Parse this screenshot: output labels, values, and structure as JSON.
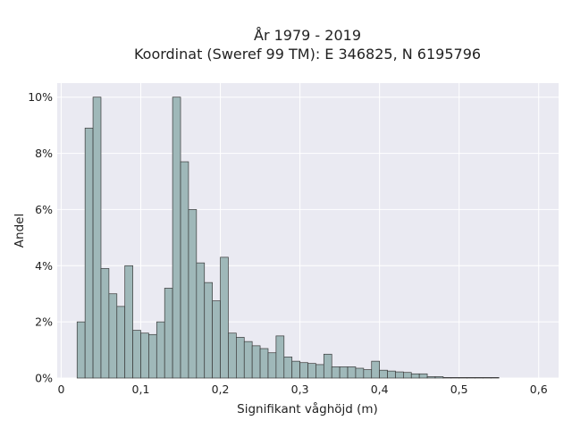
{
  "chart_data": {
    "type": "bar",
    "title_line1": "År 1979 - 2019",
    "title_line2": "Koordinat (Sweref 99 TM): E 346825, N 6195796",
    "xlabel": "Signifikant våghöjd (m)",
    "ylabel": "Andel",
    "xlim": [
      -0.005,
      0.625
    ],
    "ylim": [
      0,
      0.105
    ],
    "x_ticks": [
      0,
      0.1,
      0.2,
      0.3,
      0.4,
      0.5,
      0.6
    ],
    "x_tick_labels": [
      "0",
      "0,1",
      "0,2",
      "0,3",
      "0,4",
      "0,5",
      "0,6"
    ],
    "y_ticks": [
      0,
      0.02,
      0.04,
      0.06,
      0.08,
      0.1
    ],
    "y_tick_labels": [
      "0%",
      "2%",
      "4%",
      "6%",
      "8%",
      "10%"
    ],
    "bin_start": 0.02,
    "bin_width": 0.01,
    "values": [
      0.02,
      0.089,
      0.1,
      0.039,
      0.03,
      0.0255,
      0.04,
      0.017,
      0.016,
      0.0155,
      0.02,
      0.032,
      0.1,
      0.077,
      0.06,
      0.041,
      0.034,
      0.0275,
      0.043,
      0.016,
      0.0145,
      0.013,
      0.0115,
      0.0105,
      0.009,
      0.015,
      0.0075,
      0.006,
      0.0055,
      0.0052,
      0.0048,
      0.0085,
      0.004,
      0.004,
      0.004,
      0.0035,
      0.003,
      0.006,
      0.0028,
      0.0025,
      0.0022,
      0.002,
      0.0015,
      0.0015,
      0.0005,
      0.0005,
      0.0002,
      0.0002,
      0.0002,
      0.0002,
      0.0002,
      0.0002,
      0.0002
    ],
    "grid": true,
    "colors": {
      "background": "#eaeaf2",
      "grid": "#ffffff",
      "bar_fill": "#9fb8b9",
      "bar_edge": "#3a3a3a"
    }
  }
}
